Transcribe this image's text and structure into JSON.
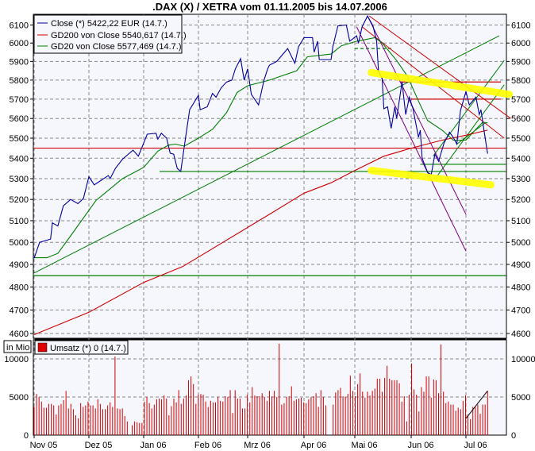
{
  "chart_data": {
    "type": "line",
    "title": ".DAX (X) / XETRA vom 01.11.2005 bis 14.07.2006",
    "price_axis": {
      "scale": "log",
      "ylim": [
        4580,
        6160
      ],
      "ticks": [
        4600,
        4700,
        4800,
        4900,
        5000,
        5100,
        5200,
        5300,
        5400,
        5500,
        5600,
        5700,
        5800,
        5900,
        6000,
        6100
      ],
      "grid": true
    },
    "x_ticks": [
      "Nov 05",
      "Dez 05",
      "Jan 06",
      "Feb 06",
      "Mrz 06",
      "Apr 06",
      "Mai 06",
      "Jun 06",
      "Jul 06"
    ],
    "x_tick_dates": [
      "2005-11-01",
      "2005-12-01",
      "2006-01-01",
      "2006-02-01",
      "2006-03-01",
      "2006-04-01",
      "2006-05-01",
      "2006-06-01",
      "2006-07-01"
    ],
    "legend": {
      "placement": "top-left",
      "entries": [
        {
          "label": "Close (*) 5422,22 EUR (14.7.)",
          "color": "#0000a0"
        },
        {
          "label": "GD200 von Close 5540,617 (14.7.)",
          "color": "#d00000"
        },
        {
          "label": "GD20 von Close 5577,469 (14.7.)",
          "color": "#008000"
        }
      ]
    },
    "series": [
      {
        "name": "Close (*)",
        "color": "#0000a0",
        "points": [
          [
            "2005-11-01",
            4928
          ],
          [
            "2005-11-04",
            5000
          ],
          [
            "2005-11-10",
            5015
          ],
          [
            "2005-11-11",
            5090
          ],
          [
            "2005-11-14",
            5075
          ],
          [
            "2005-11-17",
            5170
          ],
          [
            "2005-11-21",
            5200
          ],
          [
            "2005-11-25",
            5180
          ],
          [
            "2005-11-28",
            5205
          ],
          [
            "2005-12-01",
            5310
          ],
          [
            "2005-12-04",
            5270
          ],
          [
            "2005-12-12",
            5315
          ],
          [
            "2005-12-13",
            5300
          ],
          [
            "2005-12-16",
            5350
          ],
          [
            "2005-12-20",
            5395
          ],
          [
            "2005-12-26",
            5440
          ],
          [
            "2005-12-29",
            5410
          ],
          [
            "2006-01-03",
            5520
          ],
          [
            "2006-01-08",
            5525
          ],
          [
            "2006-01-09",
            5495
          ],
          [
            "2006-01-11",
            5525
          ],
          [
            "2006-01-14",
            5500
          ],
          [
            "2006-01-16",
            5425
          ],
          [
            "2006-01-18",
            5420
          ],
          [
            "2006-01-20",
            5350
          ],
          [
            "2006-01-22",
            5335
          ],
          [
            "2006-01-25",
            5520
          ],
          [
            "2006-01-27",
            5645
          ],
          [
            "2006-02-01",
            5720
          ],
          [
            "2006-02-02",
            5645
          ],
          [
            "2006-02-06",
            5660
          ],
          [
            "2006-02-09",
            5730
          ],
          [
            "2006-02-11",
            5710
          ],
          [
            "2006-02-14",
            5760
          ],
          [
            "2006-02-17",
            5790
          ],
          [
            "2006-02-20",
            5800
          ],
          [
            "2006-02-22",
            5860
          ],
          [
            "2006-02-25",
            5915
          ],
          [
            "2006-02-27",
            5800
          ],
          [
            "2006-03-01",
            5860
          ],
          [
            "2006-03-03",
            5725
          ],
          [
            "2006-03-07",
            5670
          ],
          [
            "2006-03-10",
            5800
          ],
          [
            "2006-03-12",
            5860
          ],
          [
            "2006-03-13",
            5880
          ],
          [
            "2006-03-17",
            5900
          ],
          [
            "2006-03-23",
            5970
          ],
          [
            "2006-03-27",
            5890
          ],
          [
            "2006-03-29",
            5980
          ],
          [
            "2006-04-01",
            6030
          ],
          [
            "2006-04-06",
            6030
          ],
          [
            "2006-04-07",
            5950
          ],
          [
            "2006-04-09",
            6010
          ],
          [
            "2006-04-10",
            5910
          ],
          [
            "2006-04-17",
            5910
          ],
          [
            "2006-04-18",
            5980
          ],
          [
            "2006-04-21",
            6095
          ],
          [
            "2006-04-26",
            6100
          ],
          [
            "2006-04-28",
            6010
          ],
          [
            "2006-05-02",
            6040
          ],
          [
            "2006-05-03",
            6000
          ],
          [
            "2006-05-05",
            6090
          ],
          [
            "2006-05-08",
            6150
          ],
          [
            "2006-05-11",
            6095
          ],
          [
            "2006-05-13",
            6010
          ],
          [
            "2006-05-14",
            5850
          ],
          [
            "2006-05-16",
            5810
          ],
          [
            "2006-05-17",
            5650
          ],
          [
            "2006-05-19",
            5660
          ],
          [
            "2006-05-21",
            5550
          ],
          [
            "2006-05-23",
            5660
          ],
          [
            "2006-05-24",
            5600
          ],
          [
            "2006-05-27",
            5790
          ],
          [
            "2006-05-29",
            5620
          ],
          [
            "2006-05-31",
            5710
          ],
          [
            "2006-06-02",
            5650
          ],
          [
            "2006-06-05",
            5505
          ],
          [
            "2006-06-06",
            5540
          ],
          [
            "2006-06-07",
            5400
          ],
          [
            "2006-06-10",
            5330
          ],
          [
            "2006-06-12",
            5320
          ],
          [
            "2006-06-14",
            5420
          ],
          [
            "2006-06-16",
            5385
          ],
          [
            "2006-06-19",
            5475
          ],
          [
            "2006-06-22",
            5530
          ],
          [
            "2006-06-24",
            5505
          ],
          [
            "2006-06-26",
            5470
          ],
          [
            "2006-06-28",
            5640
          ],
          [
            "2006-07-01",
            5740
          ],
          [
            "2006-07-03",
            5670
          ],
          [
            "2006-07-07",
            5710
          ],
          [
            "2006-07-09",
            5620
          ],
          [
            "2006-07-10",
            5645
          ],
          [
            "2006-07-12",
            5530
          ],
          [
            "2006-07-14",
            5422.22
          ]
        ]
      },
      {
        "name": "GD200 von Close",
        "color": "#d00000",
        "points": [
          [
            "2005-11-01",
            4595
          ],
          [
            "2005-12-01",
            4690
          ],
          [
            "2006-01-01",
            4820
          ],
          [
            "2006-01-23",
            4890
          ],
          [
            "2006-03-13",
            5130
          ],
          [
            "2006-04-01",
            5230
          ],
          [
            "2006-04-17",
            5280
          ],
          [
            "2006-05-01",
            5340
          ],
          [
            "2006-05-17",
            5410
          ],
          [
            "2006-06-01",
            5450
          ],
          [
            "2006-06-18",
            5490
          ],
          [
            "2006-07-01",
            5515
          ],
          [
            "2006-07-14",
            5540.617
          ]
        ]
      },
      {
        "name": "GD20 von Close",
        "color": "#008000",
        "points": [
          [
            "2005-11-01",
            4930
          ],
          [
            "2005-11-08",
            4930
          ],
          [
            "2005-11-14",
            4950
          ],
          [
            "2005-11-21",
            5030
          ],
          [
            "2005-12-05",
            5195
          ],
          [
            "2005-12-20",
            5300
          ],
          [
            "2006-01-01",
            5355
          ],
          [
            "2006-01-09",
            5435
          ],
          [
            "2006-01-15",
            5465
          ],
          [
            "2006-01-19",
            5470
          ],
          [
            "2006-01-24",
            5460
          ],
          [
            "2006-02-01",
            5500
          ],
          [
            "2006-02-09",
            5545
          ],
          [
            "2006-02-17",
            5630
          ],
          [
            "2006-02-23",
            5735
          ],
          [
            "2006-03-01",
            5770
          ],
          [
            "2006-03-13",
            5800
          ],
          [
            "2006-03-28",
            5850
          ],
          [
            "2006-04-03",
            5925
          ],
          [
            "2006-04-17",
            5940
          ],
          [
            "2006-04-23",
            5985
          ],
          [
            "2006-05-02",
            6010
          ],
          [
            "2006-05-12",
            6030
          ],
          [
            "2006-05-16",
            6000
          ],
          [
            "2006-05-24",
            5905
          ],
          [
            "2006-05-30",
            5820
          ],
          [
            "2006-06-05",
            5690
          ],
          [
            "2006-06-10",
            5590
          ],
          [
            "2006-06-18",
            5540
          ],
          [
            "2006-06-24",
            5490
          ],
          [
            "2006-07-01",
            5490
          ],
          [
            "2006-07-07",
            5545
          ],
          [
            "2006-07-11",
            5580
          ],
          [
            "2006-07-14",
            5577.469
          ]
        ]
      }
    ],
    "drawings": [
      {
        "kind": "horizontal",
        "color": "#d00000",
        "value": 5450,
        "from": "2005-10-31",
        "to": "2006-07-25"
      },
      {
        "kind": "horizontal",
        "color": "#008000",
        "value": 4850,
        "from": "2005-10-31",
        "to": "2006-07-25"
      },
      {
        "kind": "horizontal",
        "color": "#008000",
        "value": 5335,
        "from": "2006-01-10",
        "to": "2006-07-25"
      },
      {
        "kind": "horizontal",
        "color": "#008000",
        "value": 5370,
        "from": "2006-06-06",
        "to": "2006-07-25"
      },
      {
        "kind": "horizontal",
        "color": "#d00000",
        "value": 5790,
        "from": "2006-05-26",
        "to": "2006-07-22"
      },
      {
        "kind": "horizontal",
        "color": "#d00000",
        "value": 5700,
        "from": "2006-06-01",
        "to": "2006-07-22"
      },
      {
        "kind": "horizontal-dashed",
        "color": "#008000",
        "value": 5970,
        "from": "2006-05-01",
        "to": "2006-05-21"
      },
      {
        "kind": "trend",
        "color": "#008000",
        "from": [
          "2005-10-31",
          4860
        ],
        "to": [
          "2006-07-21",
          6040
        ]
      },
      {
        "kind": "trend",
        "color": "#008000",
        "from": [
          "2006-06-13",
          5410
        ],
        "to": [
          "2006-07-24",
          5905
        ]
      },
      {
        "kind": "trend",
        "color": "#008000",
        "from": [
          "2006-06-15",
          5310
        ],
        "to": [
          "2006-07-24",
          5775
        ]
      },
      {
        "kind": "trend",
        "color": "#008000",
        "from": [
          "2006-06-26",
          5470
        ],
        "to": [
          "2006-07-13",
          5580
        ]
      },
      {
        "kind": "trend",
        "color": "#d00000",
        "from": [
          "2006-05-09",
          6150
        ],
        "to": [
          "2006-07-28",
          5600
        ]
      },
      {
        "kind": "trend",
        "color": "#d00000",
        "from": [
          "2006-05-05",
          6090
        ],
        "to": [
          "2006-07-24",
          5500
        ]
      },
      {
        "kind": "trend",
        "color": "#800080",
        "from": [
          "2006-05-02",
          6090
        ],
        "to": [
          "2006-07-01",
          4960
        ]
      },
      {
        "kind": "trend",
        "color": "#800080",
        "from": [
          "2006-05-08",
          6150
        ],
        "to": [
          "2006-07-01",
          5130
        ]
      },
      {
        "kind": "highlight",
        "color": "#ffff00",
        "from": [
          "2006-05-10",
          5840
        ],
        "to": [
          "2006-07-27",
          5725
        ]
      },
      {
        "kind": "highlight",
        "color": "#ffff00",
        "from": [
          "2006-05-10",
          5340
        ],
        "to": [
          "2006-07-16",
          5270
        ]
      }
    ],
    "volume": {
      "unit_label": "in Mio",
      "legend": {
        "label": "Umsatz (*) 0 (14.7.)",
        "color": "#d00000"
      },
      "ylim": [
        0,
        12500
      ],
      "ticks": [
        0,
        5000,
        10000
      ],
      "from": "2005-11-01",
      "to": "2006-07-14",
      "values": [
        3700,
        5400,
        5000,
        4400,
        3600,
        3600,
        4100,
        4100,
        3900,
        2700,
        3900,
        4100,
        4600,
        5800,
        3500,
        4100,
        3400,
        2600,
        2200,
        4200,
        3700,
        3900,
        4400,
        3900,
        3900,
        3500,
        4700,
        4100,
        3400,
        3400,
        3900,
        4300,
        3700,
        10300,
        3500,
        3400,
        3500,
        2500,
        1800,
        0,
        1300,
        1800,
        1700,
        1600,
        1600,
        4400,
        5000,
        4200,
        3500,
        4000,
        4700,
        4800,
        4700,
        5200,
        4800,
        2600,
        3800,
        4800,
        4300,
        5900,
        4100,
        4800,
        5200,
        7200,
        7700,
        6700,
        4100,
        5300,
        5400,
        5300,
        4400,
        3700,
        4500,
        4300,
        4300,
        5000,
        4500,
        4400,
        5100,
        5000,
        5900,
        2900,
        5900,
        4800,
        4800,
        3500,
        3500,
        5300,
        4300,
        6300,
        5200,
        5100,
        5100,
        5500,
        5000,
        4500,
        5800,
        5100,
        5800,
        5000,
        12000,
        4000,
        4200,
        5000,
        5100,
        6400,
        4500,
        4700,
        4800,
        4900,
        4300,
        4200,
        4700,
        5000,
        5100,
        5500,
        3700,
        5900,
        5000,
        3900,
        0,
        0,
        4000,
        5600,
        5900,
        6200,
        5100,
        5000,
        5400,
        7800,
        5800,
        5100,
        6700,
        8100,
        5700,
        4900,
        5700,
        5200,
        5800,
        6100,
        7400,
        7400,
        5700,
        7500,
        9100,
        7400,
        7200,
        7200,
        7200,
        6800,
        4400,
        5100,
        1800,
        5300,
        9400,
        6000,
        5300,
        3100,
        6300,
        5700,
        7700,
        7700,
        4900,
        7300,
        7200,
        5500,
        11900,
        5700,
        4200,
        4400,
        4000,
        4000,
        3200,
        3600,
        3400,
        4500,
        5200,
        2700,
        2100,
        3700,
        3800,
        4000,
        2800,
        4000,
        4000,
        5800
      ],
      "trend": {
        "color": "#000000",
        "from": [
          "2006-07-01",
          2200
        ],
        "to": [
          "2006-07-14",
          5800
        ]
      }
    }
  }
}
